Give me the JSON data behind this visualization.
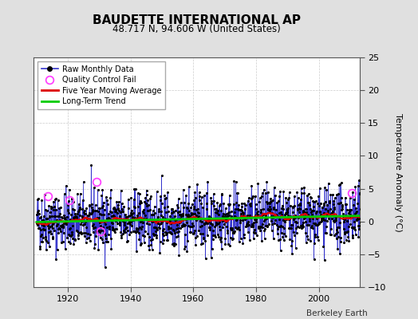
{
  "title": "BAUDETTE INTERNATIONAL AP",
  "subtitle": "48.717 N, 94.606 W (United States)",
  "ylabel": "Temperature Anomaly (°C)",
  "attribution": "Berkeley Earth",
  "year_start": 1910,
  "year_end": 2015,
  "ylim": [
    -10,
    25
  ],
  "yticks": [
    -10,
    -5,
    0,
    5,
    10,
    15,
    20,
    25
  ],
  "xticks": [
    1920,
    1940,
    1960,
    1980,
    2000
  ],
  "bg_color": "#e0e0e0",
  "plot_bg_color": "#ffffff",
  "raw_line_color": "#3333cc",
  "raw_dot_color": "#000000",
  "ma_color": "#dd0000",
  "trend_color": "#00cc00",
  "qc_fail_color": "#ff44ff",
  "seed": 42,
  "n_months": 1260,
  "trend_slope": 0.006,
  "noise_std": 2.2,
  "ma_window": 60,
  "qc_fail_times": [
    1913.5,
    1920.5,
    1929.0,
    1930.5,
    2010.5
  ],
  "qc_fail_values": [
    3.8,
    3.2,
    6.0,
    -1.5,
    4.3
  ]
}
